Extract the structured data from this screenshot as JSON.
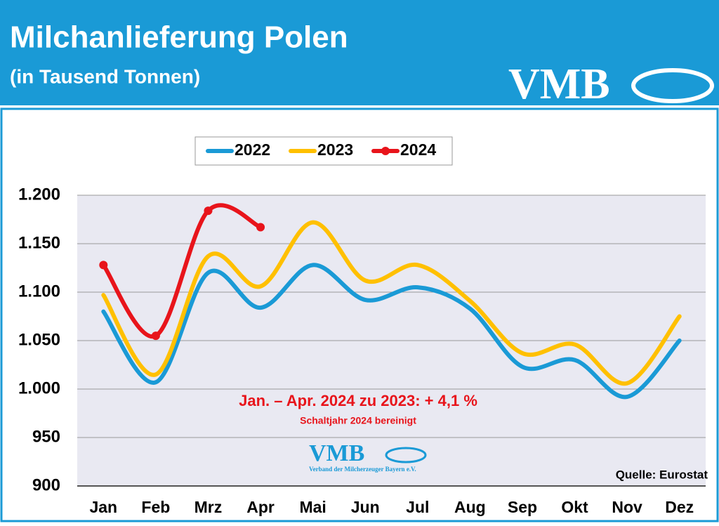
{
  "header": {
    "title": "Milchanlieferung Polen",
    "subtitle": "(in Tausend Tonnen)",
    "logo": "VMB"
  },
  "chart_data": {
    "type": "line",
    "categories": [
      "Jan",
      "Feb",
      "Mrz",
      "Apr",
      "Mai",
      "Jun",
      "Jul",
      "Aug",
      "Sep",
      "Okt",
      "Nov",
      "Dez"
    ],
    "series": [
      {
        "name": "2022",
        "color": "#1a9ad6",
        "values": [
          1080,
          1007,
          1120,
          1084,
          1128,
          1092,
          1105,
          1083,
          1023,
          1030,
          992,
          1050
        ]
      },
      {
        "name": "2023",
        "color": "#ffc000",
        "values": [
          1097,
          1015,
          1137,
          1106,
          1172,
          1112,
          1128,
          1091,
          1037,
          1046,
          1006,
          1075
        ]
      },
      {
        "name": "2024",
        "color": "#e8141b",
        "markers": true,
        "values": [
          1128,
          1055,
          1184,
          1167,
          null,
          null,
          null,
          null,
          null,
          null,
          null,
          null
        ]
      }
    ],
    "ylim": [
      900,
      1200
    ],
    "yticks": [
      900,
      950,
      {
        "value": 1000,
        "label": "1.000"
      },
      {
        "value": 1050,
        "label": "1.050"
      },
      {
        "value": 1100,
        "label": "1.100"
      },
      {
        "value": 1150,
        "label": "1.150"
      },
      {
        "value": 1200,
        "label": "1.200"
      }
    ],
    "grid": true,
    "legend": "top",
    "annotations": [
      "Jan. – Apr. 2024 zu 2023: + 4,1 %",
      "Schaltjahr 2024 bereinigt",
      "Quelle: Eurostat"
    ],
    "watermark": {
      "logo": "VMB",
      "text": "Verband der Milcherzeuger Bayern e.V."
    }
  }
}
